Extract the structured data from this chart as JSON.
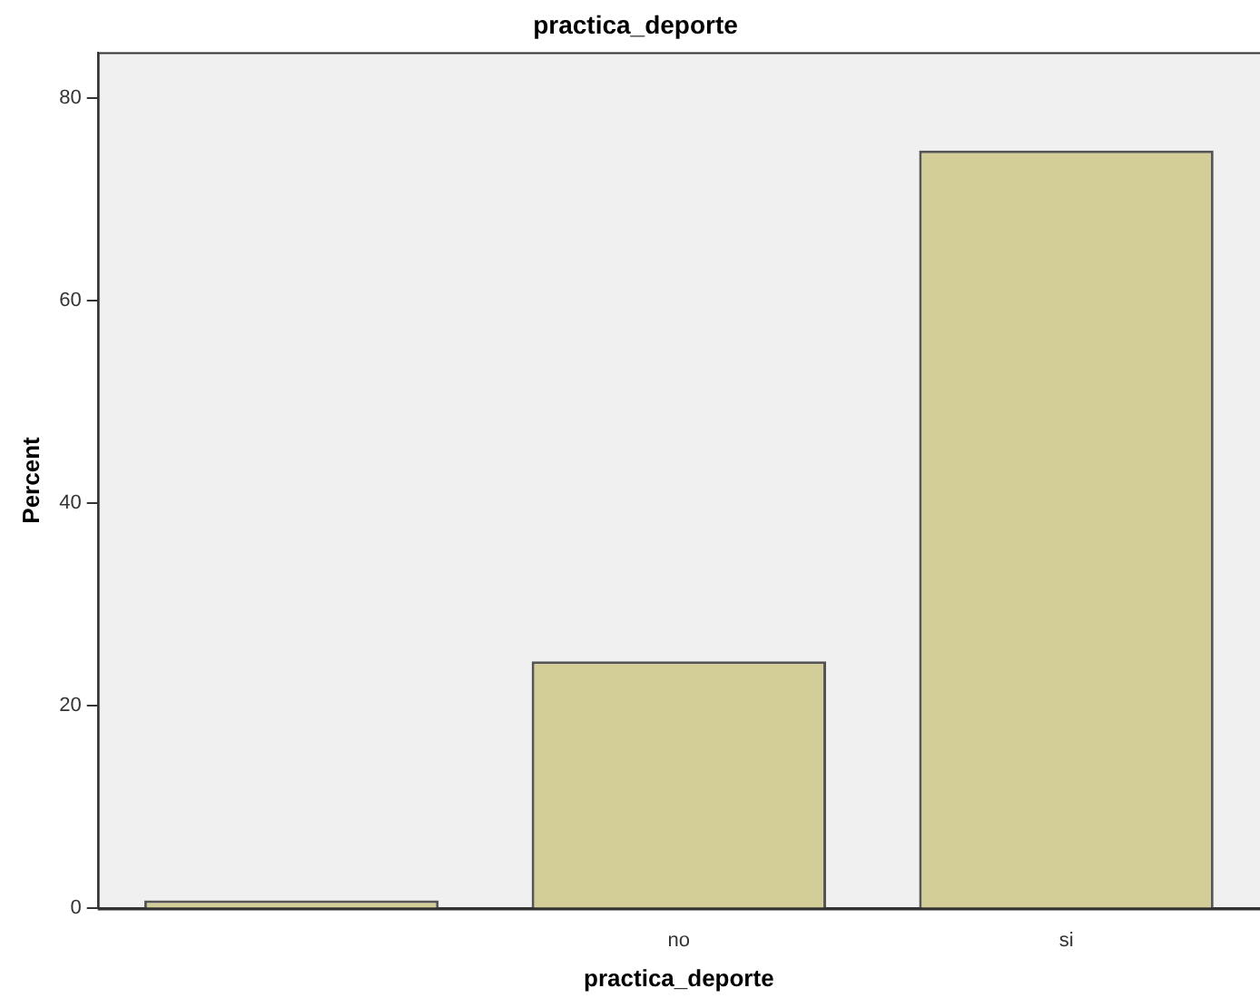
{
  "chart_data": {
    "type": "bar",
    "title": "practica_deporte",
    "xlabel": "practica_deporte",
    "ylabel": "Percent",
    "categories": [
      null,
      "no",
      "si"
    ],
    "values": [
      0.8,
      24.4,
      74.8
    ],
    "color": "#d3ce97",
    "ylim": [
      0,
      84.5
    ],
    "yticks": [
      0,
      20,
      40,
      60,
      80
    ],
    "grid": false,
    "legend": false
  }
}
